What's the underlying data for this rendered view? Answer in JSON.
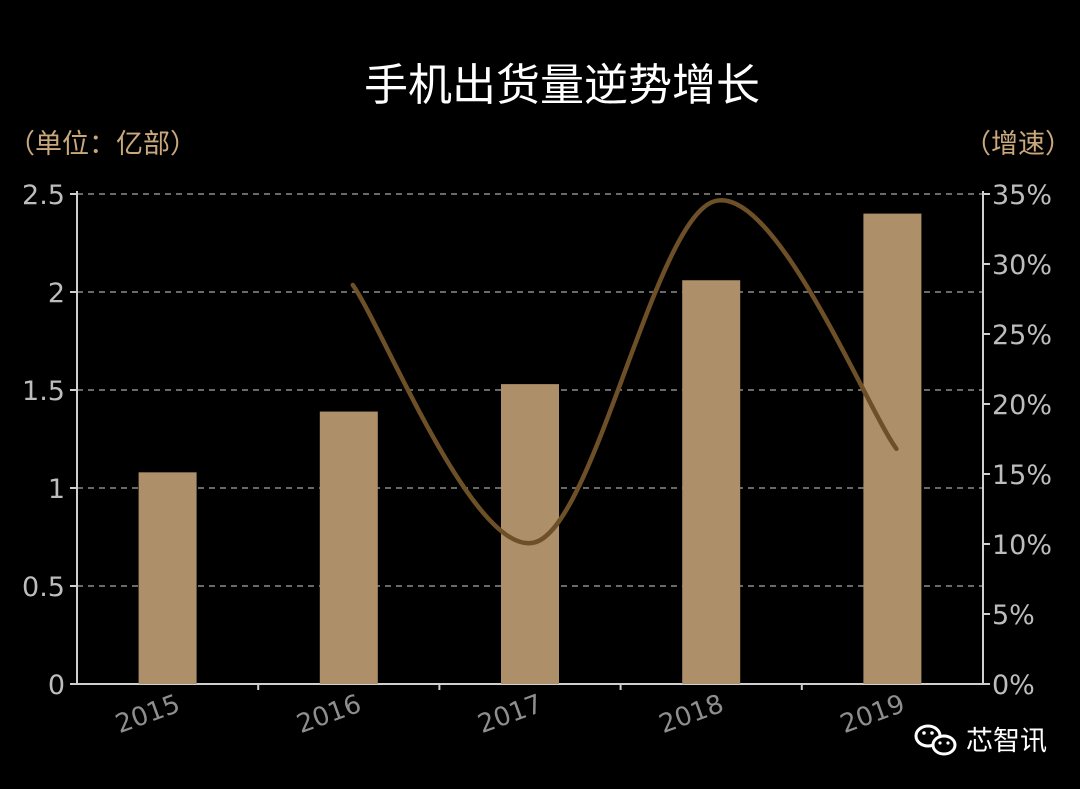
{
  "chart_data": {
    "type": "bar",
    "title": "手机出货量逆势增长",
    "left_unit_label": "（单位：亿部）",
    "right_unit_label": "（增速）",
    "categories": [
      "2015",
      "2016",
      "2017",
      "2018",
      "2019"
    ],
    "series": [
      {
        "type": "bar",
        "values": [
          1.08,
          1.39,
          1.53,
          2.06,
          2.4
        ],
        "axis": "left",
        "color": "#ad8f69"
      },
      {
        "type": "line",
        "values": [
          null,
          28.5,
          10.1,
          34.5,
          16.8
        ],
        "axis": "right",
        "color": "#6e5028",
        "smooth": true
      }
    ],
    "y_left": {
      "ylim": [
        0,
        2.5
      ],
      "ticks": [
        "0",
        "0.5",
        "1",
        "1.5",
        "2",
        "2.5"
      ]
    },
    "y_right": {
      "ylim": [
        0,
        35
      ],
      "ticks": [
        "0%",
        "5%",
        "10%",
        "15%",
        "20%",
        "25%",
        "30%",
        "35%"
      ]
    },
    "grid": true,
    "legend": "none",
    "colors": {
      "background": "#000000",
      "bar": "#ad8f69",
      "line": "#6e5028",
      "grid": "#bbbbbb",
      "unit_text": "#c9a87c"
    }
  },
  "watermark": {
    "icon": "wechat-icon",
    "text": "芯智讯"
  }
}
